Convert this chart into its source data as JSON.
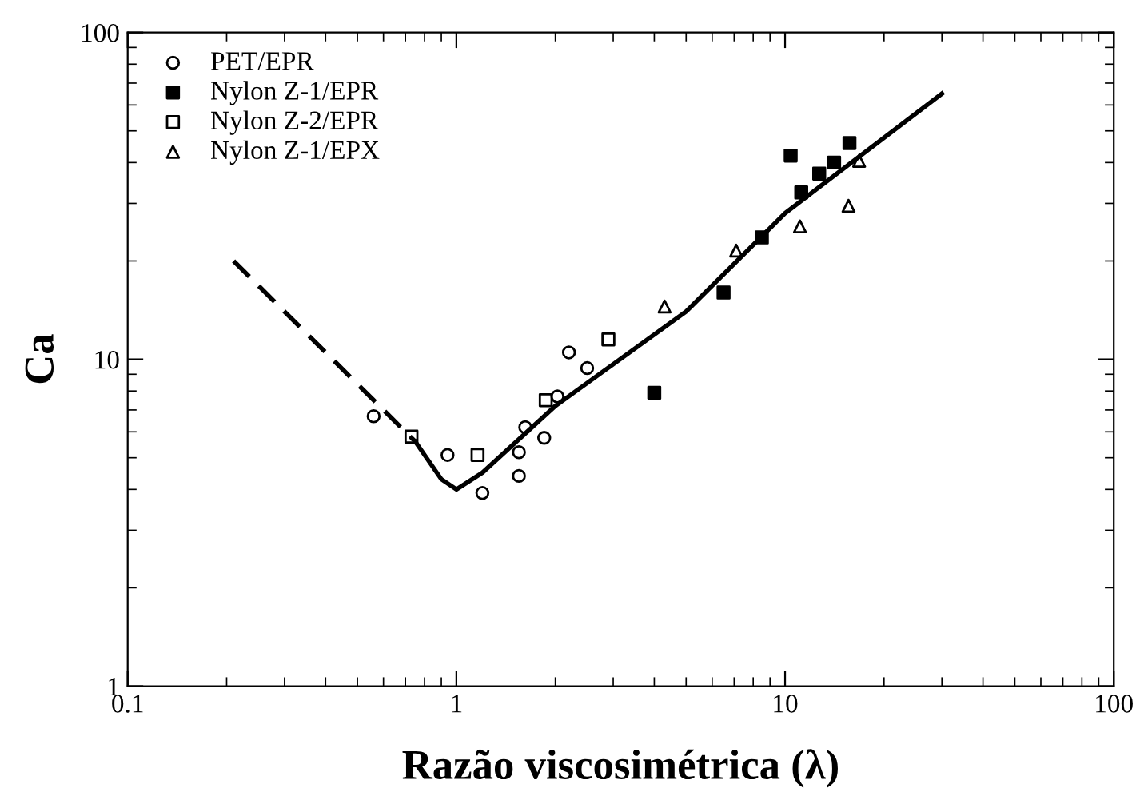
{
  "chart_data": {
    "type": "scatter",
    "xlabel": "Razão viscosimétrica (λ)",
    "ylabel": "Ca",
    "log": "xy",
    "xlim": [
      0.1,
      100
    ],
    "ylim": [
      1,
      100
    ],
    "xticks": [
      0.1,
      1,
      10,
      100
    ],
    "yticks": [
      1,
      10,
      100
    ],
    "grid": false,
    "legend": "top left",
    "series": [
      {
        "name": "PET/EPR",
        "color": "#000000",
        "marker": "circle",
        "x": [
          0.56,
          0.94,
          1.2,
          1.55,
          1.55,
          1.62,
          1.85,
          2.03,
          2.2,
          2.5
        ],
        "values": [
          6.7,
          5.1,
          3.9,
          4.4,
          5.2,
          6.2,
          5.75,
          7.7,
          10.5,
          9.4
        ]
      },
      {
        "name": "Nylon Z-1/EPR",
        "color": "#000000",
        "marker": "square",
        "x": [
          4.0,
          6.5,
          8.5,
          10.4,
          11.2,
          12.7,
          14.1,
          15.7
        ],
        "values": [
          7.9,
          16,
          23.6,
          42,
          32.4,
          37,
          40,
          45.9
        ]
      },
      {
        "name": "Nylon Z-2/EPR",
        "color": "#000000",
        "marker": "square",
        "x": [
          0.73,
          1.16,
          1.87,
          2.9
        ],
        "values": [
          5.8,
          5.1,
          7.5,
          11.5
        ]
      },
      {
        "name": "Nylon Z-1/EPX",
        "color": "#000000",
        "marker": "triangle",
        "x": [
          4.3,
          7.1,
          11.1,
          15.6,
          16.8
        ],
        "values": [
          14.5,
          21.5,
          25.5,
          29.5,
          40.5
        ]
      },
      {
        "type": "line",
        "color": "#000000",
        "line_style": "dashed",
        "marker": "none",
        "x": [
          0.21,
          0.75
        ],
        "values": [
          20,
          5.6
        ]
      },
      {
        "type": "line",
        "color": "#000000",
        "line_style": "solid",
        "marker": "none",
        "x": [
          0.75,
          0.9,
          1.0,
          1.2,
          2,
          5,
          10,
          30
        ],
        "values": [
          5.6,
          4.3,
          4.0,
          4.5,
          7.2,
          14,
          28,
          65
        ]
      }
    ]
  }
}
